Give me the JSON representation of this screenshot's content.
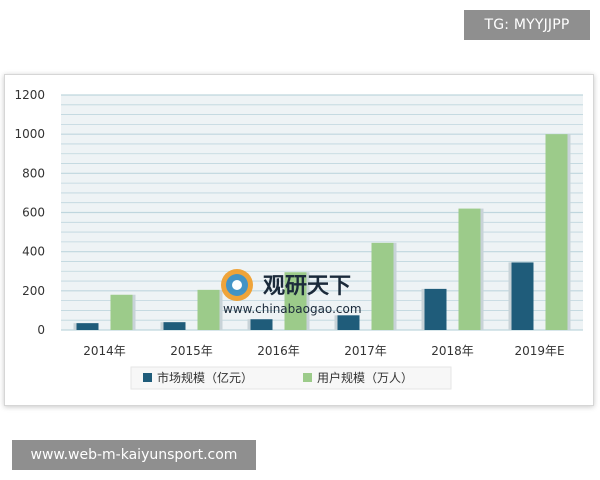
{
  "top_tag": "TG: MYYJJPP",
  "footer_url": "www.web-m-kaiyunsport.com",
  "watermark": {
    "name_cn": "观研天下",
    "url": "www.chinabaogao.com"
  },
  "colors": {
    "series_market": "#1f5c7a",
    "series_users": "#9ccb8a",
    "grid": "#bfd6de",
    "plot_bg": "#eef3f5",
    "axis_text": "#333333"
  },
  "chart_data": {
    "type": "bar",
    "categories": [
      "2014年",
      "2015年",
      "2016年",
      "2017年",
      "2018年",
      "2019年E"
    ],
    "series": [
      {
        "name": "市场规模（亿元）",
        "values": [
          35,
          40,
          55,
          75,
          210,
          345
        ]
      },
      {
        "name": "用户规模（万人）",
        "values": [
          180,
          205,
          295,
          445,
          620,
          1000
        ]
      }
    ],
    "y_ticks": [
      "0",
      "200",
      "400",
      "600",
      "800",
      "1000",
      "1200"
    ],
    "ylim": [
      0,
      1200
    ],
    "grid": true,
    "legend_position": "bottom"
  }
}
